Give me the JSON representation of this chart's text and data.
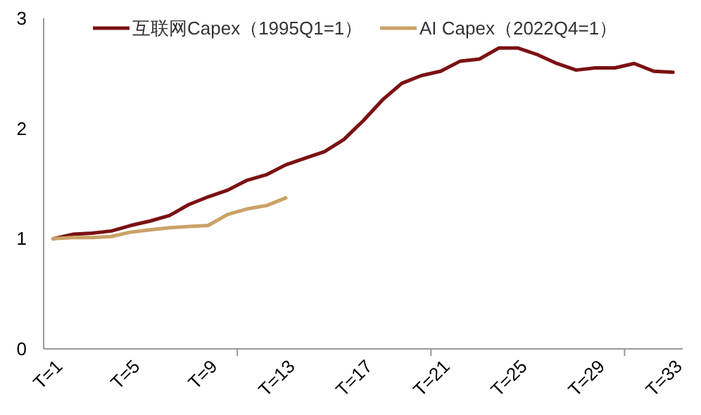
{
  "chart_data": {
    "type": "line",
    "categories": [
      "T=1",
      null,
      null,
      null,
      "T=5",
      null,
      null,
      null,
      "T=9",
      null,
      null,
      null,
      "T=13",
      null,
      null,
      null,
      "T=17",
      null,
      null,
      null,
      "T=21",
      null,
      null,
      null,
      "T=25",
      null,
      null,
      null,
      "T=29",
      null,
      null,
      null,
      "T=33"
    ],
    "series": [
      {
        "name": "互联网Capex（1995Q1=1）",
        "color": "#7b1113",
        "values": [
          1.0,
          1.04,
          1.05,
          1.07,
          1.12,
          1.16,
          1.21,
          1.31,
          1.38,
          1.44,
          1.53,
          1.58,
          1.67,
          1.73,
          1.79,
          1.9,
          2.07,
          2.26,
          2.41,
          2.48,
          2.52,
          2.61,
          2.63,
          2.73,
          2.73,
          2.67,
          2.59,
          2.53,
          2.55,
          2.55,
          2.59,
          2.52,
          2.51
        ]
      },
      {
        "name": "AI Capex（2022Q4=1）",
        "color": "#c9a265",
        "values": [
          1.0,
          1.01,
          1.01,
          1.02,
          1.06,
          1.08,
          1.1,
          1.11,
          1.12,
          1.22,
          1.27,
          1.3,
          1.37,
          null,
          null,
          null,
          null,
          null,
          null,
          null,
          null,
          null,
          null,
          null,
          null,
          null,
          null,
          null,
          null,
          null,
          null,
          null,
          null
        ]
      }
    ],
    "ylim": [
      0,
      3
    ],
    "yticks": [
      0,
      1,
      2,
      3
    ],
    "grid": false,
    "legend": "top",
    "marker": "none",
    "line_style": "solid"
  }
}
